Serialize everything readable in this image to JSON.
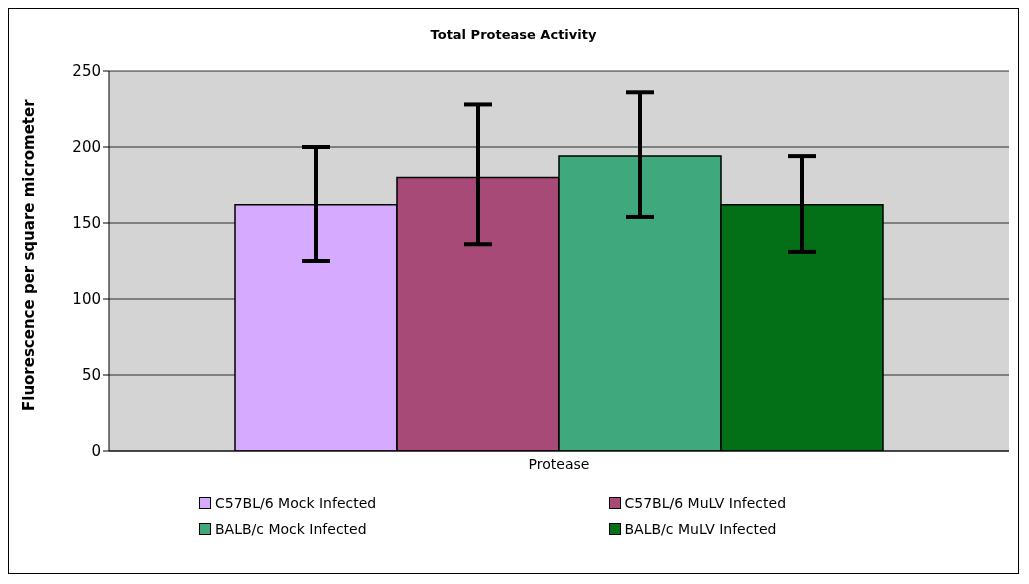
{
  "chart_data": {
    "type": "bar",
    "title": "Total Protease Activity",
    "ylabel": "Fluorescence per square micrometer",
    "categories": [
      "Protease"
    ],
    "series": [
      {
        "name": "C57BL/6 Mock Infected",
        "color": "#d5aaff",
        "values": [
          162
        ],
        "errors": [
          [
            125,
            200
          ]
        ]
      },
      {
        "name": "C57BL/6 MuLV Infected",
        "color": "#a84a77",
        "values": [
          180
        ],
        "errors": [
          [
            136,
            228
          ]
        ]
      },
      {
        "name": "BALB/c Mock Infected",
        "color": "#3fa87d",
        "values": [
          194
        ],
        "errors": [
          [
            154,
            236
          ]
        ]
      },
      {
        "name": "BALB/c MuLV Infected",
        "color": "#036f17",
        "values": [
          162
        ],
        "errors": [
          [
            131,
            194
          ]
        ]
      }
    ],
    "ylim": [
      0,
      250
    ],
    "yticks": [
      0,
      50,
      100,
      150,
      200,
      250
    ],
    "grid": "y",
    "legend": "bottom"
  }
}
